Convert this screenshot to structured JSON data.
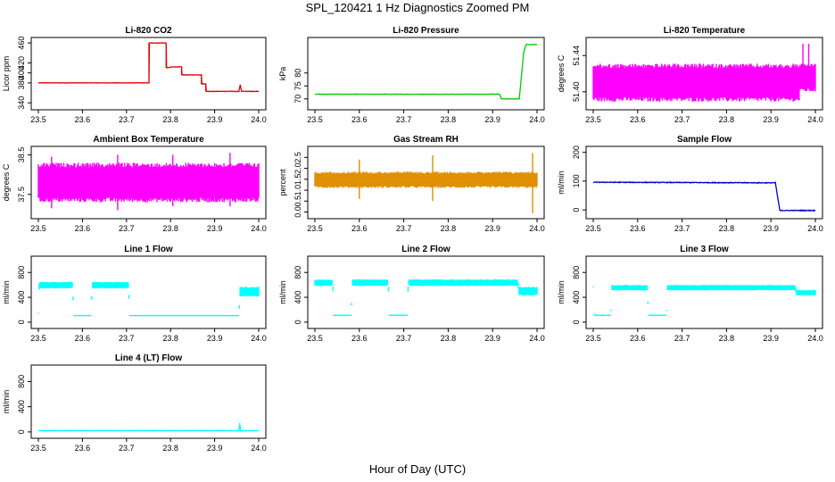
{
  "title": "SPL_120421  1 Hz Diagnostics Zoomed PM",
  "xlabel": "Hour of Day (UTC)",
  "chart_data": [
    {
      "type": "line",
      "title": "Li-820 CO2",
      "ylabel": "Licor ppm",
      "color": "#e00000",
      "xlim": [
        23.5,
        24.0
      ],
      "ylim": [
        335,
        462
      ],
      "xticks": [
        "23.5",
        "23.6",
        "23.7",
        "23.8",
        "23.9",
        "24.0"
      ],
      "yticks": [
        "340",
        "380",
        "400",
        "420",
        "460"
      ],
      "series": [
        {
          "noise": 0.4,
          "points": [
            [
              23.5,
              380
            ],
            [
              23.751,
              380
            ],
            [
              23.751,
              460
            ],
            [
              23.79,
              460
            ],
            [
              23.79,
              410
            ],
            [
              23.805,
              412
            ],
            [
              23.825,
              412
            ],
            [
              23.825,
              396
            ],
            [
              23.87,
              396
            ],
            [
              23.87,
              378
            ],
            [
              23.88,
              378
            ],
            [
              23.88,
              363
            ],
            [
              23.955,
              363
            ],
            [
              23.958,
              376
            ],
            [
              23.961,
              363
            ],
            [
              24.0,
              363
            ]
          ]
        }
      ]
    },
    {
      "type": "line",
      "title": "Li-820 Pressure",
      "ylabel": "kPa",
      "color": "#00cc00",
      "xlim": [
        23.5,
        24.0
      ],
      "ylim": [
        67.5,
        92
      ],
      "xticks": [
        "23.5",
        "23.6",
        "23.7",
        "23.8",
        "23.9",
        "24.0"
      ],
      "yticks": [
        "70",
        "75",
        "80"
      ],
      "series": [
        {
          "noise": 0.08,
          "points": [
            [
              23.5,
              71.8
            ],
            [
              23.915,
              71.8
            ],
            [
              23.92,
              70.0
            ],
            [
              23.96,
              70.0
            ],
            [
              23.965,
              79
            ],
            [
              23.97,
              88
            ],
            [
              23.975,
              91
            ],
            [
              24.0,
              91
            ]
          ]
        }
      ]
    },
    {
      "type": "band",
      "title": "Li-820 Temperature",
      "ylabel": "degrees C",
      "color": "#ff00ff",
      "xlim": [
        23.5,
        24.0
      ],
      "ylim": [
        51.385,
        51.455
      ],
      "xticks": [
        "23.5",
        "23.6",
        "23.7",
        "23.8",
        "23.9",
        "24.0"
      ],
      "yticks": [
        "51.40",
        "51.44"
      ],
      "series": [
        {
          "points": [
            [
              23.5,
              51.389,
              51.431
            ],
            [
              23.965,
              51.389,
              51.431
            ],
            [
              23.965,
              51.4,
              51.431
            ],
            [
              24.0,
              51.4,
              51.431
            ]
          ],
          "spikes": [
            [
              23.972,
              51.425,
              51.453
            ],
            [
              23.985,
              51.428,
              51.453
            ]
          ]
        }
      ]
    },
    {
      "type": "band",
      "title": "Ambient Box Temperature",
      "ylabel": "degrees C",
      "color": "#ff00ff",
      "xlim": [
        23.5,
        24.0
      ],
      "ylim": [
        37.0,
        38.6
      ],
      "xticks": [
        "23.5",
        "23.6",
        "23.7",
        "23.8",
        "23.9",
        "24.0"
      ],
      "yticks": [
        "37.5",
        "38.5"
      ],
      "series": [
        {
          "points": [
            [
              23.5,
              37.3,
              38.3
            ],
            [
              24.0,
              37.3,
              38.3
            ]
          ],
          "spikes": [
            [
              23.53,
              37.15,
              38.45
            ],
            [
              23.68,
              37.1,
              38.5
            ],
            [
              23.805,
              37.2,
              38.5
            ],
            [
              23.935,
              37.2,
              38.55
            ]
          ]
        }
      ]
    },
    {
      "type": "band",
      "title": "Gas Stream RH",
      "ylabel": "percent",
      "color": "#e09000",
      "xlim": [
        23.5,
        24.0
      ],
      "ylim": [
        -0.1,
        2.8
      ],
      "xticks": [
        "23.5",
        "23.6",
        "23.7",
        "23.8",
        "23.9",
        "24.0"
      ],
      "yticks": [
        "0.0",
        "0.5",
        "1.0",
        "1.5",
        "2.0",
        "2.5"
      ],
      "series": [
        {
          "points": [
            [
              23.5,
              1.1,
              1.85
            ],
            [
              24.0,
              1.1,
              1.85
            ]
          ],
          "spikes": [
            [
              23.6,
              0.6,
              2.4
            ],
            [
              23.765,
              0.5,
              2.6
            ],
            [
              23.99,
              -0.05,
              2.7
            ]
          ]
        }
      ]
    },
    {
      "type": "line",
      "title": "Sample Flow",
      "ylabel": "ml/min",
      "color": "#0000cc",
      "xlim": [
        23.5,
        24.0
      ],
      "ylim": [
        -15,
        205
      ],
      "xticks": [
        "23.5",
        "23.6",
        "23.7",
        "23.8",
        "23.9",
        "24.0"
      ],
      "yticks": [
        "0",
        "100",
        "200"
      ],
      "series": [
        {
          "noise": 1.2,
          "points": [
            [
              23.5,
              96
            ],
            [
              23.91,
              94
            ],
            [
              23.915,
              45
            ],
            [
              23.92,
              -2
            ],
            [
              24.0,
              -2
            ]
          ]
        }
      ]
    },
    {
      "type": "band",
      "title": "Line 1 Flow",
      "ylabel": "ml/min",
      "color": "#00ffff",
      "xlim": [
        23.5,
        24.0
      ],
      "ylim": [
        -30,
        990
      ],
      "xticks": [
        "23.5",
        "23.6",
        "23.7",
        "23.8",
        "23.9",
        "24.0"
      ],
      "yticks": [
        "0",
        "400",
        "800"
      ],
      "series": [
        {
          "points": [
            [
              23.5,
              130,
              130
            ],
            [
              23.502,
              540,
              650
            ],
            [
              23.578,
              540,
              650
            ],
            [
              23.58,
              95,
              100
            ],
            [
              23.62,
              95,
              100
            ],
            [
              23.622,
              540,
              650
            ],
            [
              23.705,
              540,
              650
            ],
            [
              23.707,
              95,
              100
            ],
            [
              23.955,
              95,
              100
            ],
            [
              23.957,
              410,
              570
            ],
            [
              24.0,
              410,
              570
            ]
          ]
        }
      ]
    },
    {
      "type": "band",
      "title": "Line 2 Flow",
      "ylabel": "ml/min",
      "color": "#00ffff",
      "xlim": [
        23.5,
        24.0
      ],
      "ylim": [
        -30,
        990
      ],
      "xticks": [
        "23.5",
        "23.6",
        "23.7",
        "23.8",
        "23.9",
        "24.0"
      ],
      "yticks": [
        "0",
        "400",
        "800"
      ],
      "series": [
        {
          "points": [
            [
              23.5,
              580,
              690
            ],
            [
              23.54,
              580,
              690
            ],
            [
              23.542,
              100,
              105
            ],
            [
              23.582,
              100,
              105
            ],
            [
              23.584,
              580,
              690
            ],
            [
              23.665,
              580,
              690
            ],
            [
              23.667,
              100,
              105
            ],
            [
              23.708,
              100,
              105
            ],
            [
              23.71,
              580,
              690
            ],
            [
              23.957,
              580,
              690
            ],
            [
              23.959,
              430,
              570
            ],
            [
              24.0,
              430,
              570
            ]
          ]
        }
      ]
    },
    {
      "type": "band",
      "title": "Line 3 Flow",
      "ylabel": "ml/min",
      "color": "#00ffff",
      "xlim": [
        23.5,
        24.0
      ],
      "ylim": [
        -30,
        990
      ],
      "xticks": [
        "23.5",
        "23.6",
        "23.7",
        "23.8",
        "23.9",
        "24.0"
      ],
      "yticks": [
        "0",
        "400",
        "800"
      ],
      "series": [
        {
          "points": [
            [
              23.5,
              560,
              560
            ],
            [
              23.502,
              100,
              105
            ],
            [
              23.54,
              100,
              105
            ],
            [
              23.542,
              510,
              600
            ],
            [
              23.622,
              510,
              600
            ],
            [
              23.624,
              100,
              105
            ],
            [
              23.665,
              100,
              105
            ],
            [
              23.667,
              510,
              600
            ],
            [
              23.955,
              510,
              600
            ],
            [
              23.957,
              430,
              520
            ],
            [
              24.0,
              430,
              520
            ]
          ]
        }
      ]
    },
    {
      "type": "line",
      "title": "Line 4 (LT) Flow",
      "ylabel": "ml/min",
      "color": "#00ffff",
      "xlim": [
        23.5,
        24.0
      ],
      "ylim": [
        -30,
        990
      ],
      "xticks": [
        "23.5",
        "23.6",
        "23.7",
        "23.8",
        "23.9",
        "24.0"
      ],
      "yticks": [
        "0",
        "400",
        "800"
      ],
      "series": [
        {
          "noise": 3,
          "points": [
            [
              23.5,
              20
            ],
            [
              23.955,
              20
            ],
            [
              23.957,
              140
            ],
            [
              23.959,
              20
            ],
            [
              24.0,
              20
            ]
          ]
        }
      ]
    }
  ]
}
